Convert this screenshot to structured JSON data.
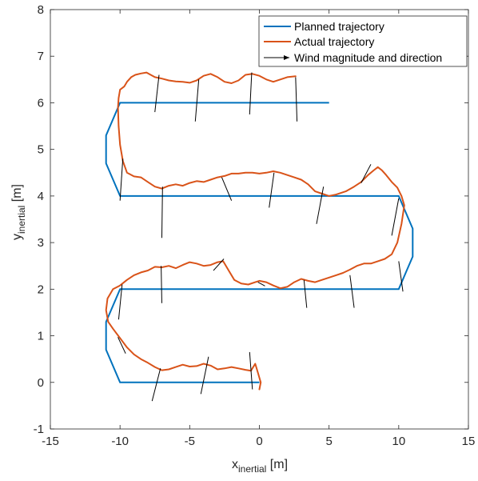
{
  "chart_data": {
    "type": "line",
    "xlabel": {
      "base": "x",
      "sub": "inertial",
      "unit": " [m]"
    },
    "ylabel": {
      "base": "y",
      "sub": "inertial",
      "unit": " [m]"
    },
    "xlim": [
      -15,
      15
    ],
    "ylim": [
      -1,
      8
    ],
    "xticks": [
      -15,
      -10,
      -5,
      0,
      5,
      10,
      15
    ],
    "yticks": [
      -1,
      0,
      1,
      2,
      3,
      4,
      5,
      6,
      7,
      8
    ],
    "grid": false,
    "legend_position": "top-right",
    "colors": {
      "planned": "#0072BD",
      "actual": "#D95319",
      "wind": "#000000",
      "axis": "#262626"
    },
    "series": [
      {
        "name": "Planned trajectory",
        "style": "line",
        "points": [
          [
            0,
            0
          ],
          [
            -10,
            0
          ],
          [
            -11,
            0.7
          ],
          [
            -11,
            1.3
          ],
          [
            -10,
            2
          ],
          [
            10,
            2
          ],
          [
            11,
            2.7
          ],
          [
            11,
            3.3
          ],
          [
            10,
            4
          ],
          [
            -10,
            4
          ],
          [
            -11,
            4.7
          ],
          [
            -11,
            5.3
          ],
          [
            -10,
            6
          ],
          [
            5,
            6
          ]
        ]
      },
      {
        "name": "Actual trajectory",
        "style": "line",
        "points": [
          [
            0,
            -0.15
          ],
          [
            0.1,
            0
          ],
          [
            -0.1,
            0.2
          ],
          [
            -0.3,
            0.4
          ],
          [
            -0.6,
            0.25
          ],
          [
            -1,
            0.27
          ],
          [
            -1.5,
            0.3
          ],
          [
            -2,
            0.33
          ],
          [
            -2.5,
            0.3
          ],
          [
            -3,
            0.28
          ],
          [
            -3.5,
            0.36
          ],
          [
            -4,
            0.4
          ],
          [
            -4.5,
            0.35
          ],
          [
            -5,
            0.34
          ],
          [
            -5.5,
            0.38
          ],
          [
            -6,
            0.33
          ],
          [
            -6.5,
            0.28
          ],
          [
            -7,
            0.26
          ],
          [
            -7.5,
            0.33
          ],
          [
            -8,
            0.42
          ],
          [
            -8.5,
            0.5
          ],
          [
            -9,
            0.6
          ],
          [
            -9.5,
            0.75
          ],
          [
            -10,
            0.95
          ],
          [
            -10.5,
            1.15
          ],
          [
            -10.85,
            1.3
          ],
          [
            -11,
            1.55
          ],
          [
            -10.9,
            1.8
          ],
          [
            -10.5,
            2
          ],
          [
            -10,
            2.08
          ],
          [
            -9.5,
            2.2
          ],
          [
            -9,
            2.3
          ],
          [
            -8.5,
            2.36
          ],
          [
            -8,
            2.4
          ],
          [
            -7.5,
            2.48
          ],
          [
            -7,
            2.47
          ],
          [
            -6.5,
            2.5
          ],
          [
            -6,
            2.45
          ],
          [
            -5.5,
            2.52
          ],
          [
            -5,
            2.58
          ],
          [
            -4.5,
            2.55
          ],
          [
            -4,
            2.5
          ],
          [
            -3.5,
            2.52
          ],
          [
            -3,
            2.58
          ],
          [
            -2.6,
            2.6
          ],
          [
            -2.2,
            2.4
          ],
          [
            -1.8,
            2.2
          ],
          [
            -1.3,
            2.12
          ],
          [
            -0.8,
            2.1
          ],
          [
            -0.3,
            2.15
          ],
          [
            0,
            2.18
          ],
          [
            0.5,
            2.15
          ],
          [
            1,
            2.08
          ],
          [
            1.5,
            2.02
          ],
          [
            2,
            2.05
          ],
          [
            2.5,
            2.15
          ],
          [
            3,
            2.22
          ],
          [
            3.5,
            2.18
          ],
          [
            4,
            2.15
          ],
          [
            4.5,
            2.2
          ],
          [
            5,
            2.25
          ],
          [
            5.5,
            2.3
          ],
          [
            6,
            2.35
          ],
          [
            6.5,
            2.42
          ],
          [
            7,
            2.5
          ],
          [
            7.5,
            2.55
          ],
          [
            8,
            2.55
          ],
          [
            8.5,
            2.6
          ],
          [
            9,
            2.65
          ],
          [
            9.5,
            2.75
          ],
          [
            9.9,
            3.0
          ],
          [
            10.2,
            3.4
          ],
          [
            10.4,
            3.8
          ],
          [
            10.2,
            4.0
          ],
          [
            9.9,
            4.18
          ],
          [
            9.5,
            4.3
          ],
          [
            9.1,
            4.45
          ],
          [
            8.8,
            4.55
          ],
          [
            8.5,
            4.62
          ],
          [
            8.2,
            4.55
          ],
          [
            7.8,
            4.45
          ],
          [
            7.3,
            4.3
          ],
          [
            6.8,
            4.2
          ],
          [
            6.2,
            4.1
          ],
          [
            5.5,
            4.03
          ],
          [
            5,
            4.0
          ],
          [
            4.5,
            4.05
          ],
          [
            4,
            4.1
          ],
          [
            3.5,
            4.25
          ],
          [
            3,
            4.35
          ],
          [
            2.5,
            4.4
          ],
          [
            2,
            4.45
          ],
          [
            1.5,
            4.5
          ],
          [
            1,
            4.53
          ],
          [
            0.5,
            4.5
          ],
          [
            0,
            4.48
          ],
          [
            -0.5,
            4.5
          ],
          [
            -1,
            4.5
          ],
          [
            -1.5,
            4.48
          ],
          [
            -2,
            4.48
          ],
          [
            -2.5,
            4.43
          ],
          [
            -3,
            4.4
          ],
          [
            -3.5,
            4.35
          ],
          [
            -4,
            4.3
          ],
          [
            -4.5,
            4.32
          ],
          [
            -5,
            4.28
          ],
          [
            -5.5,
            4.22
          ],
          [
            -6,
            4.25
          ],
          [
            -6.5,
            4.22
          ],
          [
            -7,
            4.16
          ],
          [
            -7.5,
            4.2
          ],
          [
            -8,
            4.3
          ],
          [
            -8.5,
            4.4
          ],
          [
            -9,
            4.42
          ],
          [
            -9.5,
            4.5
          ],
          [
            -9.8,
            4.75
          ],
          [
            -10,
            5.1
          ],
          [
            -10.1,
            5.5
          ],
          [
            -10.15,
            5.9
          ],
          [
            -10.1,
            6.1
          ],
          [
            -10,
            6.28
          ],
          [
            -9.7,
            6.35
          ],
          [
            -9.5,
            6.45
          ],
          [
            -9.2,
            6.55
          ],
          [
            -8.9,
            6.6
          ],
          [
            -8.5,
            6.63
          ],
          [
            -8.1,
            6.65
          ],
          [
            -7.8,
            6.6
          ],
          [
            -7.5,
            6.55
          ],
          [
            -7,
            6.52
          ],
          [
            -6.5,
            6.48
          ],
          [
            -6,
            6.46
          ],
          [
            -5.5,
            6.45
          ],
          [
            -5,
            6.43
          ],
          [
            -4.5,
            6.48
          ],
          [
            -4,
            6.58
          ],
          [
            -3.5,
            6.62
          ],
          [
            -3,
            6.55
          ],
          [
            -2.5,
            6.45
          ],
          [
            -2,
            6.42
          ],
          [
            -1.5,
            6.48
          ],
          [
            -1,
            6.6
          ],
          [
            -0.5,
            6.62
          ],
          [
            0,
            6.58
          ],
          [
            0.5,
            6.5
          ],
          [
            1,
            6.45
          ],
          [
            1.5,
            6.5
          ],
          [
            2,
            6.55
          ],
          [
            2.6,
            6.57
          ]
        ]
      },
      {
        "name": "Wind magnitude and direction",
        "style": "quiver",
        "vectors": [
          [
            -7.5,
            5.8,
            0.3,
            0.8
          ],
          [
            -4.6,
            5.6,
            0.25,
            0.9
          ],
          [
            -0.7,
            5.75,
            0.15,
            0.9
          ],
          [
            2.7,
            5.6,
            -0.1,
            0.95
          ],
          [
            -10,
            3.9,
            0.2,
            0.9
          ],
          [
            -7,
            3.1,
            0.05,
            1.1
          ],
          [
            -2,
            3.9,
            -0.7,
            0.5
          ],
          [
            0.7,
            3.75,
            0.35,
            0.75
          ],
          [
            4.1,
            3.4,
            0.5,
            0.8
          ],
          [
            7.3,
            4.28,
            0.7,
            0.4
          ],
          [
            9.5,
            3.15,
            0.5,
            0.8
          ],
          [
            -10.1,
            1.35,
            0.25,
            0.75
          ],
          [
            -7,
            1.7,
            -0.05,
            0.8
          ],
          [
            -3.3,
            2.4,
            0.75,
            0.25
          ],
          [
            -0.1,
            2.15,
            0.5,
            -0.08
          ],
          [
            3.4,
            1.6,
            -0.2,
            0.6
          ],
          [
            6.8,
            1.6,
            -0.3,
            0.7
          ],
          [
            10.3,
            1.95,
            -0.3,
            0.65
          ],
          [
            -9.6,
            0.62,
            -0.55,
            0.35
          ],
          [
            -7.7,
            -0.4,
            0.6,
            0.7
          ],
          [
            -4.2,
            -0.25,
            0.55,
            0.8
          ],
          [
            -0.5,
            -0.15,
            -0.2,
            0.8
          ]
        ]
      }
    ]
  }
}
